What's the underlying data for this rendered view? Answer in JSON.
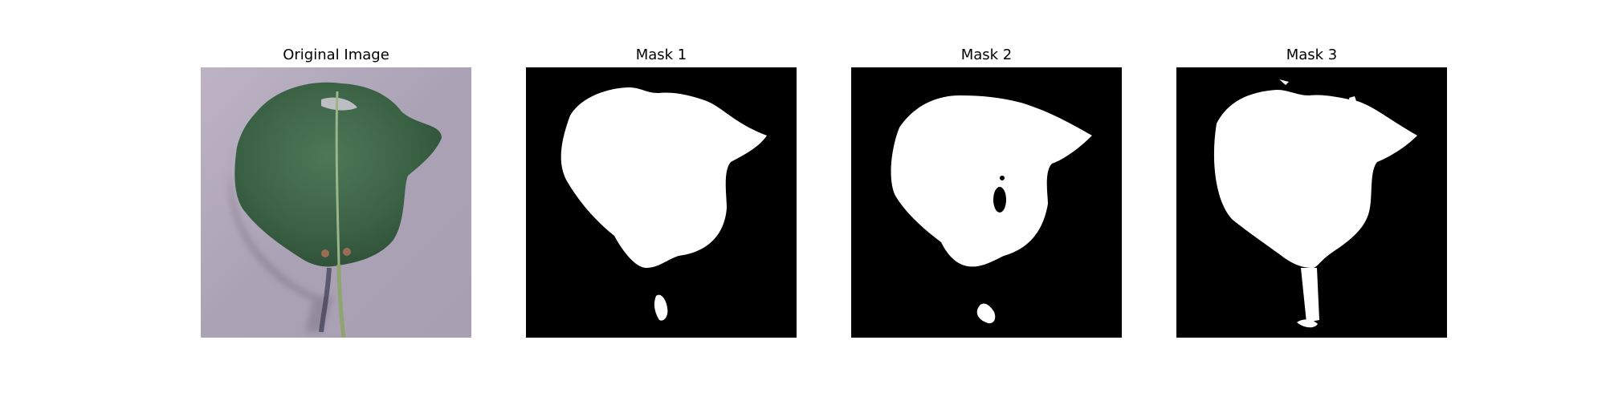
{
  "figure": {
    "panels": [
      {
        "title": "Original Image",
        "kind": "photo"
      },
      {
        "title": "Mask 1",
        "kind": "mask"
      },
      {
        "title": "Mask 2",
        "kind": "mask"
      },
      {
        "title": "Mask 3",
        "kind": "mask"
      }
    ]
  },
  "colors": {
    "mask_background": "#000000",
    "mask_foreground": "#ffffff",
    "photo_background": "#aea6b6",
    "leaf_dark": "#2c4a34",
    "leaf_mid": "#3f6a49",
    "leaf_light": "#5e8766",
    "stem": "#8fa56f"
  }
}
